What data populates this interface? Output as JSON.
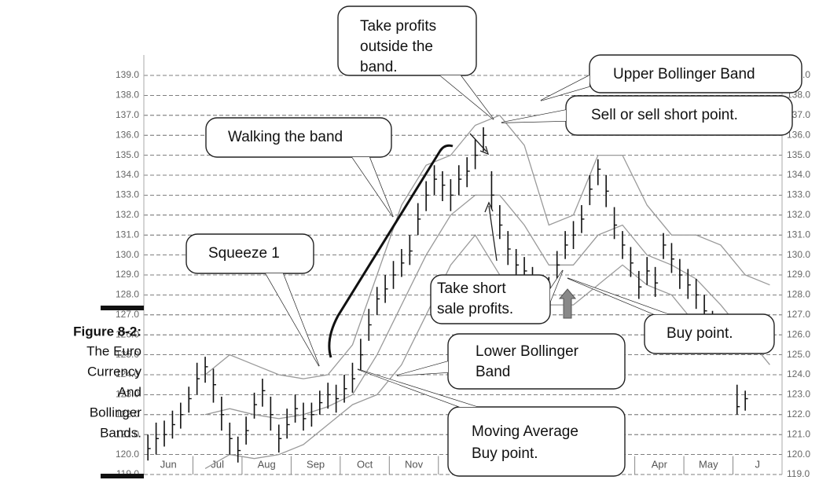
{
  "figure_caption": {
    "label": "Figure 8-2:",
    "lines": [
      "The Euro",
      "Currency",
      "And",
      "Bollinger",
      "Bands."
    ]
  },
  "chart_data": {
    "type": "ohlc",
    "categories": [
      "Jun",
      "Jul",
      "Aug",
      "Sep",
      "Oct",
      "Nov",
      null,
      null,
      null,
      "Mar",
      "Apr",
      "May",
      "J"
    ],
    "close": [
      120.3,
      120.8,
      121.0,
      121.5,
      122.0,
      122.8,
      123.8,
      124.4,
      123.5,
      122.0,
      120.8,
      120.2,
      121.2,
      122.5,
      123.2,
      122.0,
      120.8,
      121.5,
      122.3,
      121.8,
      122.0,
      122.6,
      123.0,
      122.8,
      123.3,
      123.8,
      125.0,
      126.5,
      127.8,
      128.3,
      129.0,
      129.6,
      130.2,
      131.8,
      133.0,
      133.8,
      133.5,
      133.0,
      133.8,
      134.2,
      135.0,
      136.0,
      133.0,
      131.5,
      130.3,
      129.5,
      129.2,
      128.6,
      127.9,
      128.2,
      129.5,
      130.5,
      131.0,
      131.8,
      133.3,
      134.3,
      133.2,
      131.5,
      130.5,
      129.6,
      128.4,
      129.2,
      128.6,
      130.5,
      129.8,
      129.0,
      128.5,
      128.0,
      127.2,
      126.5,
      126.0,
      125.8,
      122.4,
      122.8
    ],
    "high": [
      121.0,
      121.6,
      121.7,
      122.2,
      122.6,
      123.4,
      124.6,
      124.9,
      124.3,
      122.9,
      121.6,
      120.9,
      121.9,
      123.1,
      123.8,
      122.9,
      121.5,
      122.3,
      123.0,
      122.6,
      122.6,
      123.2,
      123.6,
      123.5,
      124.0,
      124.6,
      125.8,
      127.3,
      128.4,
      129.0,
      129.7,
      130.3,
      131.0,
      132.6,
      133.7,
      134.5,
      134.2,
      133.8,
      134.5,
      134.9,
      135.8,
      136.4,
      134.2,
      132.5,
      131.2,
      130.3,
      129.9,
      129.4,
      128.8,
      128.9,
      130.2,
      131.2,
      131.7,
      132.5,
      134.0,
      134.8,
      134.0,
      132.4,
      131.2,
      130.4,
      129.2,
      129.9,
      129.4,
      131.1,
      130.6,
      129.8,
      129.3,
      128.8,
      128.0,
      127.2,
      126.7,
      126.4,
      123.5,
      123.2
    ],
    "low": [
      119.7,
      120.0,
      120.4,
      120.8,
      121.3,
      122.1,
      123.0,
      123.6,
      122.6,
      121.2,
      120.0,
      119.6,
      120.5,
      121.8,
      122.4,
      121.2,
      120.1,
      120.8,
      121.6,
      121.2,
      121.4,
      122.0,
      122.3,
      122.1,
      122.6,
      123.1,
      124.2,
      125.7,
      127.0,
      127.6,
      128.3,
      128.9,
      129.5,
      131.0,
      132.2,
      133.0,
      132.7,
      132.2,
      133.0,
      133.4,
      134.3,
      135.2,
      132.3,
      130.8,
      129.5,
      128.8,
      128.5,
      127.8,
      127.5,
      127.6,
      128.7,
      129.8,
      130.3,
      131.1,
      132.5,
      133.5,
      132.4,
      130.8,
      129.8,
      128.9,
      127.8,
      128.5,
      127.9,
      129.8,
      129.1,
      128.3,
      127.8,
      127.3,
      126.5,
      125.8,
      125.4,
      125.1,
      122.0,
      122.2
    ],
    "bar_color": "#111111",
    "bands": [
      {
        "color": "#9a9a9a",
        "values": [
          null,
          null,
          124.0,
          125.0,
          124.5,
          124.0,
          123.8,
          124.0,
          125.5,
          129.0,
          132.5,
          134.5,
          135.0,
          136.5,
          137.0,
          135.5,
          131.5,
          132.0,
          135.0,
          135.0,
          132.5,
          131.0,
          131.0,
          130.5,
          129.0,
          128.5
        ]
      },
      {
        "color": "#9a9a9a",
        "values": [
          null,
          null,
          122.0,
          122.3,
          122.0,
          121.8,
          122.0,
          122.4,
          123.0,
          125.0,
          127.5,
          130.0,
          132.0,
          133.0,
          133.0,
          131.5,
          129.5,
          129.5,
          131.0,
          131.5,
          130.0,
          129.5,
          128.8,
          127.5,
          126.0,
          124.5
        ]
      },
      {
        "color": "#9a9a9a",
        "values": [
          null,
          null,
          119.3,
          120.0,
          119.8,
          120.0,
          120.5,
          121.5,
          122.5,
          123.0,
          124.5,
          127.0,
          129.5,
          131.0,
          129.0,
          127.5,
          127.5,
          127.5,
          128.5,
          129.5,
          128.5,
          128.0,
          126.5,
          125.0,
          null,
          null
        ]
      }
    ],
    "ylim": [
      119,
      139
    ],
    "yticks": [
      {
        "value": 119,
        "label": "119.0"
      },
      {
        "value": 120,
        "label": "120.0"
      },
      {
        "value": 121,
        "label": "121.0"
      },
      {
        "value": 122,
        "label": "122.0"
      },
      {
        "value": 123,
        "label": "123.0"
      },
      {
        "value": 124,
        "label": "124.0"
      },
      {
        "value": 125,
        "label": "125.0"
      },
      {
        "value": 126,
        "label": "126.0"
      },
      {
        "value": 127,
        "label": "127.0"
      },
      {
        "value": 128,
        "label": "128.0"
      },
      {
        "value": 129,
        "label": "129.0"
      },
      {
        "value": 130,
        "label": "130.0"
      },
      {
        "value": 131,
        "label": "131.0"
      },
      {
        "value": 132,
        "label": "132.0"
      },
      {
        "value": 133,
        "label": "133.0"
      },
      {
        "value": 134,
        "label": "134.0"
      },
      {
        "value": 135,
        "label": "135.0"
      },
      {
        "value": 136,
        "label": "136.0"
      },
      {
        "value": 137,
        "label": "137.0"
      },
      {
        "value": 138,
        "label": "138.0"
      },
      {
        "value": 139,
        "label": "139.0"
      }
    ],
    "grid": true,
    "annotations": [
      {
        "lines": [
          "Take profits",
          "outside the",
          "band."
        ]
      },
      {
        "lines": [
          "Upper Bollinger Band"
        ]
      },
      {
        "lines": [
          "Sell or sell short point."
        ]
      },
      {
        "lines": [
          "Walking the band"
        ]
      },
      {
        "lines": [
          "Squeeze 1"
        ]
      },
      {
        "lines": [
          "Take short",
          "sale profits."
        ]
      },
      {
        "lines": [
          "Buy point."
        ]
      },
      {
        "lines": [
          "Lower Bollinger",
          "Band"
        ]
      },
      {
        "lines": [
          "Moving Average",
          "Buy point."
        ]
      }
    ]
  }
}
